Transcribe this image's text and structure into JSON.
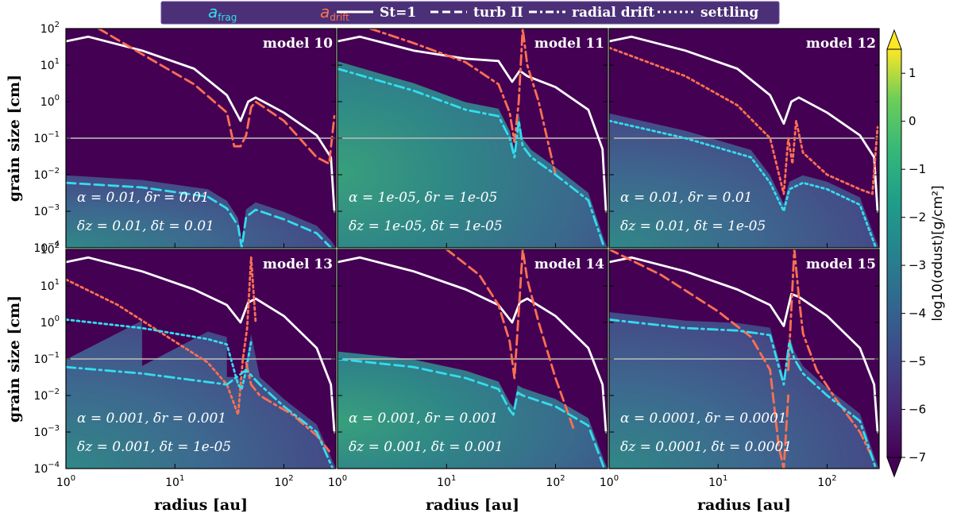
{
  "legend": [
    {
      "label": "a",
      "sub": "frag",
      "style": "text",
      "color": "#33ddee"
    },
    {
      "label": "a",
      "sub": "drift",
      "style": "text",
      "color": "#ff7050"
    },
    {
      "label": "St=1",
      "style": "solid",
      "color": "#ffffff"
    },
    {
      "label": "turb II",
      "style": "dashed",
      "color": "#ffffff"
    },
    {
      "label": "radial drift",
      "style": "dashdot",
      "color": "#ffffff"
    },
    {
      "label": "settling",
      "style": "dotted",
      "color": "#ffffff"
    }
  ],
  "axes": {
    "ylabel": "grain size [cm]",
    "xlabel": "radius [au]",
    "x_ticks": [
      {
        "base": "10",
        "exp": "0"
      },
      {
        "base": "10",
        "exp": "1"
      },
      {
        "base": "10",
        "exp": "2"
      }
    ],
    "y_ticks": [
      {
        "base": "10",
        "exp": "2"
      },
      {
        "base": "10",
        "exp": "1"
      },
      {
        "base": "10",
        "exp": "0"
      },
      {
        "base": "10",
        "exp": "−1"
      },
      {
        "base": "10",
        "exp": "−2"
      },
      {
        "base": "10",
        "exp": "−3"
      },
      {
        "base": "10",
        "exp": "−4"
      }
    ]
  },
  "colorbar": {
    "label": "log10(σdust)[g/cm²]",
    "ticks": [
      "1",
      "0",
      "−1",
      "−2",
      "−3",
      "−4",
      "−5",
      "−6",
      "−7"
    ],
    "range": [
      -7,
      1.5
    ]
  },
  "chart_data": [
    {
      "type": "heatmap",
      "title": "model 10",
      "xlabel": "radius [au]",
      "ylabel": "grain size [cm]",
      "xscale": "log",
      "yscale": "log",
      "xlim": [
        1,
        300
      ],
      "ylim": [
        0.0001,
        100
      ],
      "params": [
        "α = 0.01, δr = 0.01",
        "δz = 0.01, δt = 0.01"
      ],
      "reference_line_y": 0.1,
      "series": [
        {
          "name": "St=1",
          "style": "solid",
          "color": "#ffffff",
          "x": [
            1,
            1.6,
            5,
            15,
            30,
            40,
            47,
            55,
            100,
            200,
            270,
            290
          ],
          "y": [
            45,
            60,
            25,
            8,
            1.5,
            0.3,
            1,
            1.3,
            0.5,
            0.12,
            0.03,
            0.001
          ]
        },
        {
          "name": "a_drift turb II",
          "style": "dashed",
          "color": "#ff7050",
          "x": [
            2,
            5,
            15,
            30,
            35,
            40,
            45,
            50,
            55,
            100,
            200,
            260,
            290
          ],
          "y": [
            100,
            20,
            3,
            0.5,
            0.06,
            0.06,
            0.12,
            0.7,
            1,
            0.3,
            0.03,
            0.02,
            0.4
          ]
        },
        {
          "name": "a_frag turb II",
          "style": "dashed",
          "color": "#33ddee",
          "x": [
            1,
            5,
            20,
            30,
            38,
            41,
            45,
            55,
            100,
            200,
            270
          ],
          "y": [
            0.006,
            0.0045,
            0.0025,
            0.0012,
            0.0004,
            0.0001,
            0.0007,
            0.0011,
            0.0006,
            0.00025,
            0.0001
          ]
        }
      ]
    },
    {
      "type": "heatmap",
      "title": "model 11",
      "xlabel": "radius [au]",
      "ylabel": "grain size [cm]",
      "xscale": "log",
      "yscale": "log",
      "xlim": [
        1,
        300
      ],
      "ylim": [
        0.0001,
        100
      ],
      "params": [
        "α = 1e-05, δr = 1e-05",
        "δz = 1e-05, δt = 1e-05"
      ],
      "reference_line_y": 0.1,
      "series": [
        {
          "name": "St=1",
          "style": "solid",
          "color": "#ffffff",
          "x": [
            1,
            1.6,
            5,
            15,
            30,
            40,
            47,
            55,
            100,
            200,
            270,
            290
          ],
          "y": [
            45,
            60,
            25,
            15,
            13,
            3.5,
            7,
            5,
            2.5,
            0.6,
            0.05,
            0.001
          ]
        },
        {
          "name": "a_drift radial drift",
          "style": "dashdot",
          "color": "#ff7050",
          "x": [
            2,
            5,
            15,
            30,
            38,
            42,
            46,
            50,
            55,
            70,
            100
          ],
          "y": [
            100,
            40,
            12,
            3,
            0.5,
            0.08,
            1,
            100,
            10,
            1,
            0.01
          ]
        },
        {
          "name": "a_frag radial drift",
          "style": "dashdot",
          "color": "#33ddee",
          "x": [
            1,
            5,
            15,
            30,
            38,
            42,
            46,
            50,
            60,
            100,
            200,
            280
          ],
          "y": [
            8,
            2,
            0.6,
            0.4,
            0.1,
            0.03,
            0.3,
            0.06,
            0.03,
            0.01,
            0.002,
            0.0001
          ]
        }
      ]
    },
    {
      "type": "heatmap",
      "title": "model 12",
      "xlabel": "radius [au]",
      "ylabel": "grain size [cm]",
      "xscale": "log",
      "yscale": "log",
      "xlim": [
        1,
        300
      ],
      "ylim": [
        0.0001,
        100
      ],
      "params": [
        "α = 0.01, δr = 0.01",
        "δz = 0.01, δt = 1e-05"
      ],
      "reference_line_y": 0.1,
      "series": [
        {
          "name": "St=1",
          "style": "solid",
          "color": "#ffffff",
          "x": [
            1,
            1.6,
            5,
            15,
            30,
            40,
            47,
            55,
            100,
            200,
            270,
            290
          ],
          "y": [
            45,
            60,
            25,
            8,
            1.5,
            0.25,
            1,
            1.3,
            0.5,
            0.12,
            0.03,
            0.001
          ]
        },
        {
          "name": "a_drift settling",
          "style": "dotted",
          "color": "#ff7050",
          "x": [
            1,
            5,
            15,
            30,
            40,
            44,
            48,
            52,
            60,
            100,
            200,
            260,
            290
          ],
          "y": [
            30,
            5,
            0.8,
            0.1,
            0.003,
            0.1,
            0.02,
            0.3,
            0.04,
            0.01,
            0.004,
            0.003,
            0.2
          ]
        },
        {
          "name": "a_frag settling",
          "style": "dotted",
          "color": "#33ddee",
          "x": [
            1,
            5,
            20,
            30,
            40,
            45,
            60,
            100,
            200,
            280
          ],
          "y": [
            0.3,
            0.1,
            0.03,
            0.006,
            0.001,
            0.004,
            0.006,
            0.004,
            0.0015,
            0.0001
          ]
        }
      ]
    },
    {
      "type": "heatmap",
      "title": "model 13",
      "xlabel": "radius [au]",
      "ylabel": "grain size [cm]",
      "xscale": "log",
      "yscale": "log",
      "xlim": [
        1,
        300
      ],
      "ylim": [
        0.0001,
        100
      ],
      "params": [
        "α = 0.001, δr = 0.001",
        "δz = 0.001, δt = 1e-05"
      ],
      "reference_line_y": 0.1,
      "series": [
        {
          "name": "St=1",
          "style": "solid",
          "color": "#ffffff",
          "x": [
            1,
            1.6,
            5,
            15,
            30,
            40,
            47,
            55,
            100,
            200,
            270,
            290
          ],
          "y": [
            45,
            60,
            25,
            8,
            3,
            1,
            3.5,
            4.5,
            1.5,
            0.2,
            0.02,
            0.001
          ]
        },
        {
          "name": "a_drift settling",
          "style": "dotted",
          "color": "#ff7050",
          "x": [
            1,
            3,
            10,
            20,
            30,
            38,
            42,
            46,
            50,
            55
          ],
          "y": [
            15,
            3,
            0.3,
            0.08,
            0.02,
            0.003,
            0.1,
            0.7,
            60,
            1
          ]
        },
        {
          "name": "a_frag settling",
          "style": "dotted",
          "color": "#33ddee",
          "x": [
            1,
            5,
            20,
            30,
            38,
            41,
            45,
            50
          ],
          "y": [
            1.2,
            0.7,
            0.35,
            0.25,
            0.02,
            0.015,
            0.05,
            0.3
          ]
        },
        {
          "name": "a_drift radial drift",
          "style": "dashdot",
          "color": "#ff7050",
          "x": [
            45,
            50,
            60,
            80,
            120,
            200,
            260
          ],
          "y": [
            0.08,
            0.02,
            0.01,
            0.006,
            0.003,
            0.0008,
            0.0003
          ]
        },
        {
          "name": "a_frag radial drift",
          "style": "dashdot",
          "color": "#33ddee",
          "x": [
            1,
            5,
            30,
            45,
            60,
            100,
            200,
            280
          ],
          "y": [
            0.06,
            0.04,
            0.02,
            0.05,
            0.02,
            0.005,
            0.001,
            0.0001
          ]
        }
      ]
    },
    {
      "type": "heatmap",
      "title": "model 14",
      "xlabel": "radius [au]",
      "ylabel": "grain size [cm]",
      "xscale": "log",
      "yscale": "log",
      "xlim": [
        1,
        300
      ],
      "ylim": [
        0.0001,
        100
      ],
      "params": [
        "α = 0.001, δr = 0.001",
        "δz = 0.001, δt = 0.001"
      ],
      "reference_line_y": 0.1,
      "series": [
        {
          "name": "St=1",
          "style": "solid",
          "color": "#ffffff",
          "x": [
            1,
            1.6,
            5,
            15,
            30,
            40,
            47,
            55,
            100,
            200,
            270,
            290
          ],
          "y": [
            45,
            60,
            25,
            8,
            3,
            1,
            3.5,
            4.5,
            1.5,
            0.2,
            0.02,
            0.001
          ]
        },
        {
          "name": "a_drift turb II",
          "style": "dashed",
          "color": "#ff7050",
          "x": [
            10,
            20,
            30,
            38,
            42,
            46,
            50,
            55,
            70,
            100,
            150
          ],
          "y": [
            100,
            20,
            3,
            0.3,
            0.03,
            2,
            100,
            15,
            1,
            0.03,
            0.001
          ]
        },
        {
          "name": "a_frag turb II",
          "style": "dashed",
          "color": "#33ddee",
          "x": [
            1,
            5,
            15,
            30,
            38,
            41,
            45,
            50,
            100,
            200,
            280
          ],
          "y": [
            0.1,
            0.06,
            0.03,
            0.015,
            0.004,
            0.003,
            0.012,
            0.01,
            0.005,
            0.0015,
            0.0001
          ]
        }
      ]
    },
    {
      "type": "heatmap",
      "title": "model 15",
      "xlabel": "radius [au]",
      "ylabel": "grain size [cm]",
      "xscale": "log",
      "yscale": "log",
      "xlim": [
        1,
        300
      ],
      "ylim": [
        0.0001,
        100
      ],
      "params": [
        "α = 0.0001, δr = 0.0001",
        "δz = 0.0001, δt = 0.0001"
      ],
      "reference_line_y": 0.1,
      "series": [
        {
          "name": "St=1",
          "style": "solid",
          "color": "#ffffff",
          "x": [
            1,
            1.6,
            5,
            15,
            30,
            40,
            47,
            55,
            100,
            200,
            270,
            290
          ],
          "y": [
            45,
            60,
            25,
            8,
            3,
            0.8,
            6,
            5,
            1.5,
            0.2,
            0.02,
            0.001
          ]
        },
        {
          "name": "a_drift turb II",
          "style": "dashed",
          "color": "#ff7050",
          "x": [
            1,
            3,
            10,
            20,
            30,
            36,
            40,
            44
          ],
          "y": [
            100,
            20,
            2,
            0.4,
            0.05,
            0.0004,
            0.0001,
            0.01
          ]
        },
        {
          "name": "a_drift radial drift",
          "style": "dashdot",
          "color": "#ff7050",
          "x": [
            44,
            50,
            55,
            60,
            80,
            120,
            200,
            260
          ],
          "y": [
            0.05,
            100,
            5,
            0.5,
            0.05,
            0.008,
            0.001,
            0.0002
          ]
        },
        {
          "name": "a_frag radial drift",
          "style": "dashdot",
          "color": "#33ddee",
          "x": [
            1,
            5,
            15,
            30,
            40,
            45,
            50,
            60,
            100,
            200,
            280
          ],
          "y": [
            1.2,
            0.7,
            0.6,
            0.45,
            0.02,
            0.3,
            0.1,
            0.04,
            0.01,
            0.002,
            0.0001
          ]
        }
      ]
    }
  ]
}
